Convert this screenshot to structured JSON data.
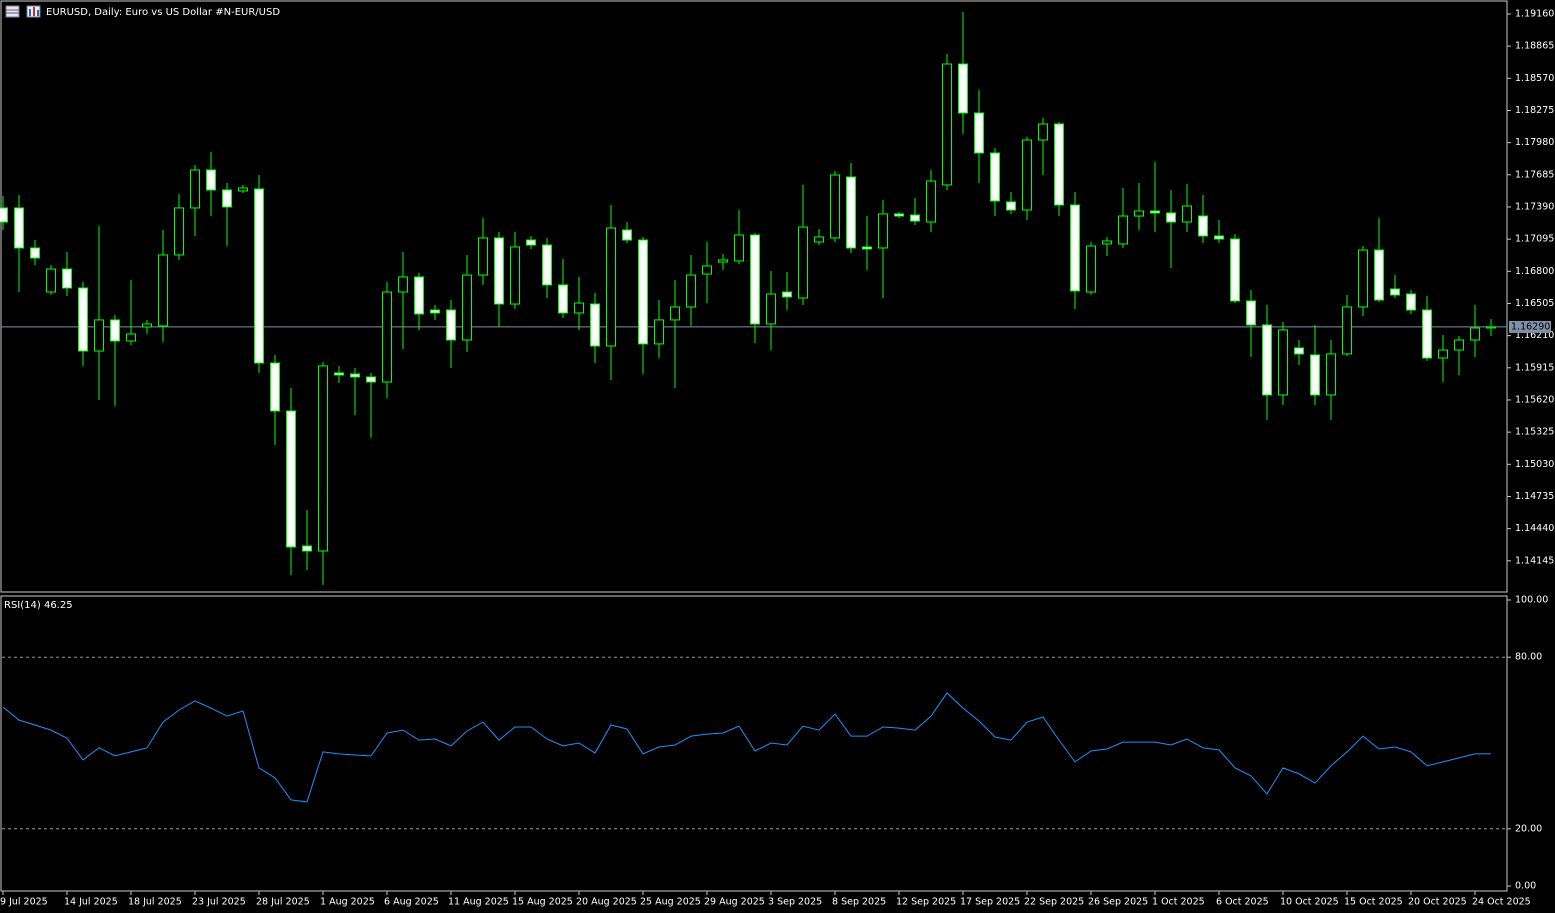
{
  "chart_data": [
    {
      "type": "candlestick",
      "title": "EURUSD, Daily:  Euro vs US Dollar #N-EUR/USD",
      "categories": [
        "9 Jul 2025",
        null,
        null,
        null,
        "14 Jul 2025",
        null,
        null,
        null,
        "18 Jul 2025",
        null,
        null,
        null,
        "23 Jul 2025",
        null,
        null,
        null,
        "28 Jul 2025",
        null,
        null,
        null,
        "1 Aug 2025",
        null,
        null,
        null,
        "6 Aug 2025",
        null,
        null,
        null,
        "11 Aug 2025",
        null,
        null,
        null,
        "15 Aug 2025",
        null,
        null,
        null,
        "20 Aug 2025",
        null,
        null,
        null,
        "25 Aug 2025",
        null,
        null,
        null,
        "29 Aug 2025",
        null,
        null,
        null,
        "3 Sep 2025",
        null,
        null,
        null,
        "8 Sep 2025",
        null,
        null,
        null,
        "12 Sep 2025",
        null,
        null,
        null,
        "17 Sep 2025",
        null,
        null,
        null,
        "22 Sep 2025",
        null,
        null,
        null,
        "26 Sep 2025",
        null,
        null,
        null,
        "1 Oct 2025",
        null,
        null,
        null,
        "6 Oct 2025",
        null,
        null,
        null,
        "10 Oct 2025",
        null,
        null,
        null,
        "15 Oct 2025",
        null,
        null,
        null,
        "20 Oct 2025",
        null,
        null,
        null,
        "24 Oct 2025",
        null
      ],
      "open": [
        1.17381,
        1.17381,
        1.17014,
        1.1661,
        1.16821,
        1.16647,
        1.16069,
        1.16354,
        1.16161,
        1.16289,
        1.16299,
        1.1695,
        1.17381,
        1.17729,
        1.17546,
        1.17537,
        1.17555,
        1.15959,
        1.15519,
        1.14281,
        1.14235,
        1.15868,
        1.15858,
        1.15831,
        1.15785,
        1.1661,
        1.16748,
        1.16445,
        1.16445,
        1.1617,
        1.16766,
        1.17106,
        1.165,
        1.17087,
        1.17041,
        1.16675,
        1.16418,
        1.165,
        1.16115,
        1.17179,
        1.17087,
        1.16134,
        1.16354,
        1.16473,
        1.16775,
        1.16885,
        1.16895,
        1.17133,
        1.16317,
        1.1661,
        1.16555,
        1.17069,
        1.17106,
        1.17665,
        1.17023,
        1.17014,
        1.17326,
        1.17316,
        1.17252,
        1.17592,
        1.18701,
        1.18252,
        1.17885,
        1.17436,
        1.17362,
        1.18004,
        1.18151,
        1.17408,
        1.1661,
        1.17051,
        1.17051,
        1.17307,
        1.17353,
        1.17335,
        1.17252,
        1.17307,
        1.17124,
        1.17096,
        1.16528,
        1.16308,
        1.15666,
        1.16097,
        1.16033,
        1.15666,
        1.16042,
        1.16473,
        1.16995,
        1.16638,
        1.16592,
        1.16445,
        1.16005,
        1.16078,
        1.1617,
        1.1628
      ],
      "high": [
        1.17491,
        1.175,
        1.17087,
        1.16858,
        1.16977,
        1.16702,
        1.17216,
        1.16399,
        1.1672,
        1.16354,
        1.17179,
        1.17509,
        1.17775,
        1.17894,
        1.1761,
        1.17592,
        1.17683,
        1.16033,
        1.1573,
        1.14611,
        1.15968,
        1.15932,
        1.15913,
        1.15868,
        1.16702,
        1.16977,
        1.16785,
        1.16491,
        1.16537,
        1.1695,
        1.17289,
        1.17161,
        1.17161,
        1.17124,
        1.17106,
        1.16913,
        1.16748,
        1.16601,
        1.17408,
        1.17252,
        1.17115,
        1.16537,
        1.1672,
        1.1695,
        1.17069,
        1.16959,
        1.17362,
        1.17151,
        1.16803,
        1.16794,
        1.17592,
        1.17188,
        1.1772,
        1.17793,
        1.17307,
        1.17454,
        1.17344,
        1.17472,
        1.17729,
        1.18793,
        1.19178,
        1.18463,
        1.17931,
        1.17527,
        1.18032,
        1.18206,
        1.18169,
        1.17527,
        1.17069,
        1.17115,
        1.17564,
        1.1761,
        1.17802,
        1.17546,
        1.17601,
        1.175,
        1.17271,
        1.17142,
        1.16629,
        1.16491,
        1.16335,
        1.1617,
        1.16308,
        1.1617,
        1.16583,
        1.17032,
        1.17289,
        1.16766,
        1.16629,
        1.16574,
        1.16216,
        1.16207,
        1.16491,
        1.16363
      ],
      "low": [
        1.17179,
        1.1661,
        1.16858,
        1.16583,
        1.16574,
        1.15932,
        1.1562,
        1.15565,
        1.16124,
        1.16225,
        1.16152,
        1.16904,
        1.17124,
        1.17307,
        1.17032,
        1.17518,
        1.15868,
        1.15207,
        1.14015,
        1.14061,
        1.13924,
        1.15776,
        1.15482,
        1.15272,
        1.15638,
        1.16088,
        1.16262,
        1.16354,
        1.15913,
        1.1606,
        1.16675,
        1.16289,
        1.16454,
        1.17005,
        1.16555,
        1.16372,
        1.16262,
        1.15959,
        1.15803,
        1.1706,
        1.15858,
        1.16005,
        1.1573,
        1.16299,
        1.16509,
        1.16812,
        1.16867,
        1.16143,
        1.16078,
        1.16445,
        1.16491,
        1.17041,
        1.17069,
        1.16968,
        1.16812,
        1.16555,
        1.17289,
        1.17225,
        1.17161,
        1.17546,
        1.18059,
        1.1761,
        1.17307,
        1.17326,
        1.17271,
        1.17683,
        1.17307,
        1.16454,
        1.16583,
        1.1694,
        1.17014,
        1.17179,
        1.17161,
        1.1683,
        1.17161,
        1.1706,
        1.1706,
        1.16509,
        1.16014,
        1.15437,
        1.15574,
        1.15941,
        1.15574,
        1.15437,
        1.16023,
        1.1639,
        1.16519,
        1.16555,
        1.16409,
        1.15978,
        1.15785,
        1.15849,
        1.16014,
        1.16207
      ],
      "close": [
        1.17252,
        1.17014,
        1.16922,
        1.16821,
        1.16647,
        1.16069,
        1.16354,
        1.16161,
        1.16225,
        1.16317,
        1.1695,
        1.17381,
        1.17729,
        1.17546,
        1.1739,
        1.17564,
        1.15959,
        1.15519,
        1.14272,
        1.14235,
        1.15932,
        1.15849,
        1.15831,
        1.15785,
        1.1661,
        1.16748,
        1.16409,
        1.16418,
        1.1617,
        1.16766,
        1.17106,
        1.165,
        1.17023,
        1.17041,
        1.16675,
        1.16418,
        1.16509,
        1.16115,
        1.17197,
        1.17087,
        1.16134,
        1.16354,
        1.16473,
        1.16766,
        1.16849,
        1.16904,
        1.17133,
        1.16317,
        1.16592,
        1.16565,
        1.17206,
        1.17115,
        1.17683,
        1.17014,
        1.17005,
        1.17326,
        1.17307,
        1.17261,
        1.17628,
        1.18701,
        1.18252,
        1.17885,
        1.17445,
        1.17362,
        1.18004,
        1.18151,
        1.17408,
        1.1662,
        1.17032,
        1.17078,
        1.17307,
        1.17353,
        1.17335,
        1.17252,
        1.17399,
        1.17124,
        1.17096,
        1.16528,
        1.16308,
        1.15666,
        1.16262,
        1.16042,
        1.15666,
        1.16042,
        1.16473,
        1.16995,
        1.16537,
        1.16583,
        1.16445,
        1.16005,
        1.16078,
        1.1617,
        1.1628,
        1.1629
      ],
      "ylim": [
        1.13859,
        1.19288
      ],
      "yticks": [
        {
          "value": 1.1916,
          "label": "1.19160"
        },
        {
          "value": 1.18865,
          "label": "1.18865"
        },
        {
          "value": 1.1857,
          "label": "1.18570"
        },
        {
          "value": 1.18275,
          "label": "1.18275"
        },
        {
          "value": 1.1798,
          "label": "1.17980"
        },
        {
          "value": 1.17685,
          "label": "1.17685"
        },
        {
          "value": 1.1739,
          "label": "1.17390"
        },
        {
          "value": 1.17095,
          "label": "1.17095"
        },
        {
          "value": 1.168,
          "label": "1.16800"
        },
        {
          "value": 1.16505,
          "label": "1.16505"
        },
        {
          "value": 1.1621,
          "label": "1.16210"
        },
        {
          "value": 1.15915,
          "label": "1.15915"
        },
        {
          "value": 1.1562,
          "label": "1.15620"
        },
        {
          "value": 1.15325,
          "label": "1.15325"
        },
        {
          "value": 1.1503,
          "label": "1.15030"
        },
        {
          "value": 1.14735,
          "label": "1.14735"
        },
        {
          "value": 1.1444,
          "label": "1.14440"
        },
        {
          "value": 1.14145,
          "label": "1.14145"
        }
      ],
      "last_price": {
        "value": 1.1629,
        "label": "1.16290"
      },
      "bull_color": "#000000",
      "bear_color": "#ffffff",
      "wick_color": "#00ff00",
      "last_price_color": "#8090a8"
    },
    {
      "type": "line",
      "title": "RSI(14) 46.25",
      "color": "#1e90ff",
      "values": [
        62.6,
        58.0,
        56.3,
        54.5,
        51.7,
        44.1,
        48.3,
        45.5,
        46.9,
        48.3,
        57.3,
        61.5,
        64.7,
        62.2,
        59.4,
        61.2,
        41.3,
        37.8,
        30.1,
        29.4,
        46.9,
        46.2,
        45.8,
        45.5,
        53.5,
        54.5,
        51.0,
        51.4,
        49.0,
        54.2,
        57.3,
        51.0,
        55.6,
        55.6,
        51.4,
        49.0,
        50.0,
        46.5,
        56.3,
        54.9,
        46.2,
        48.6,
        49.3,
        52.4,
        53.1,
        53.5,
        55.9,
        47.2,
        50.0,
        49.3,
        55.9,
        54.5,
        60.1,
        52.4,
        52.4,
        55.6,
        55.2,
        54.5,
        59.4,
        67.5,
        62.2,
        57.7,
        52.1,
        51.0,
        57.3,
        59.1,
        51.0,
        43.4,
        47.2,
        47.9,
        50.3,
        50.3,
        50.3,
        49.3,
        51.4,
        48.3,
        47.6,
        41.3,
        38.5,
        32.2,
        41.3,
        39.2,
        36.0,
        42.0,
        46.9,
        52.4,
        47.9,
        48.6,
        46.9,
        42.0,
        43.4,
        44.8,
        46.2,
        46.25
      ],
      "ylim": [
        0,
        100
      ],
      "yticks": [
        {
          "value": 100,
          "label": "100.00"
        },
        {
          "value": 80,
          "label": "80.00"
        },
        {
          "value": 20,
          "label": "20.00"
        },
        {
          "value": 0,
          "label": "0.00"
        }
      ],
      "levels": [
        80,
        20
      ]
    }
  ]
}
